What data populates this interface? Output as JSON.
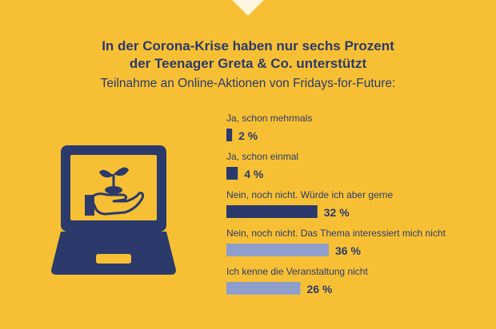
{
  "header": {
    "title_line1": "In der Corona-Krise haben nur sechs Prozent",
    "title_line2": "der Teenager Greta & Co. unterstützt",
    "subtitle": "Teilnahme an Online-Aktionen von Fridays-for-Future:"
  },
  "colors": {
    "background": "#f7c034",
    "dark_bar": "#2b3a6b",
    "light_bar": "#8f9fcb",
    "text": "#2b3a6b"
  },
  "illustration": {
    "icon": "laptop-with-plant-in-hand-icon"
  },
  "chart_data": {
    "type": "bar",
    "orientation": "horizontal",
    "unit": "%",
    "categories": [
      "Ja, schon mehrmals",
      "Ja, schon einmal",
      "Nein, noch nicht. Würde ich aber gerne",
      "Nein, noch nicht. Das Thema interessiert mich nicht",
      "Ich kenne die Veranstaltung nicht"
    ],
    "values": [
      2,
      4,
      32,
      36,
      26
    ],
    "value_labels": [
      "2 %",
      "4 %",
      "32 %",
      "36 %",
      "26 %"
    ],
    "bar_colors": [
      "#2b3a6b",
      "#2b3a6b",
      "#2b3a6b",
      "#8f9fcb",
      "#8f9fcb"
    ],
    "xlim": [
      0,
      36
    ],
    "grid": false,
    "legend": "none"
  }
}
